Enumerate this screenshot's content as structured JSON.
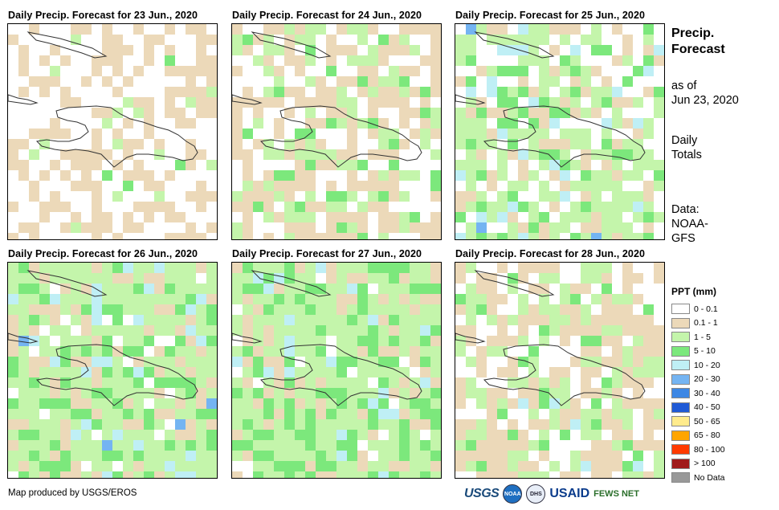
{
  "panels": [
    {
      "title": "Daily Precip. Forecast for 23 Jun., 2020"
    },
    {
      "title": "Daily Precip. Forecast for 24 Jun., 2020"
    },
    {
      "title": "Daily Precip. Forecast for 25 Jun., 2020"
    },
    {
      "title": "Daily Precip. Forecast for 26 Jun., 2020"
    },
    {
      "title": "Daily Precip. Forecast for 27 Jun., 2020"
    },
    {
      "title": "Daily Precip. Forecast for 28 Jun., 2020"
    }
  ],
  "side": {
    "title_line1": "Precip.",
    "title_line2": "Forecast",
    "asof_line1": "as of",
    "asof_line2": "Jun 23, 2020",
    "totals_line1": "Daily",
    "totals_line2": "Totals",
    "data_line1": "Data:",
    "data_line2": "NOAA-",
    "data_line3": "GFS"
  },
  "legend": {
    "title": "PPT (mm)",
    "items": [
      {
        "label": "0 - 0.1",
        "color": "#ffffff"
      },
      {
        "label": "0.1 - 1",
        "color": "#ecd9b9"
      },
      {
        "label": "1 - 5",
        "color": "#c4f5ab"
      },
      {
        "label": "5 - 10",
        "color": "#7ce87c"
      },
      {
        "label": "10 - 20",
        "color": "#bfeff5"
      },
      {
        "label": "20 - 30",
        "color": "#74b4f2"
      },
      {
        "label": "30 - 40",
        "color": "#3d87e4"
      },
      {
        "label": "40 - 50",
        "color": "#1f5ad6"
      },
      {
        "label": "50 - 65",
        "color": "#ffeb8c"
      },
      {
        "label": "65 - 80",
        "color": "#ffa500"
      },
      {
        "label": "80 - 100",
        "color": "#ff3b00"
      },
      {
        "label": "> 100",
        "color": "#a01a1a"
      },
      {
        "label": "No Data",
        "color": "#999999"
      }
    ]
  },
  "footer": {
    "credit": "Map produced by USGS/EROS",
    "logo_usgs": "USGS",
    "logo_noaa": "NOAA",
    "logo_dhs": "DHS",
    "logo_usaid": "USAID",
    "logo_fews": "FEWS NET"
  }
}
